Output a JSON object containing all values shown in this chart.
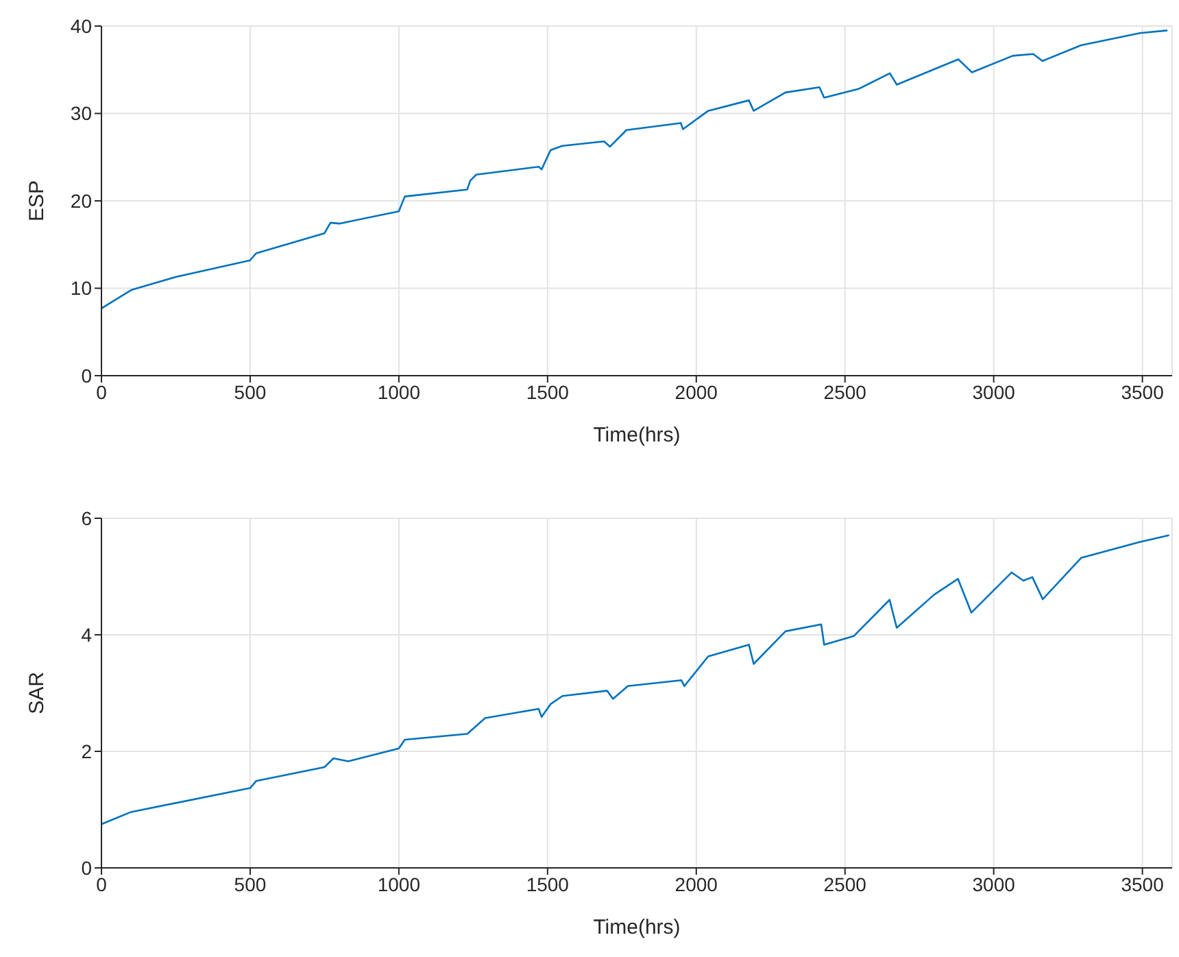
{
  "chart_data": [
    {
      "type": "line",
      "xlabel": "Time(hrs)",
      "ylabel": "ESP",
      "color": "#0072bd",
      "grid": true,
      "xlim": [
        0,
        3600
      ],
      "xticks": [
        0,
        500,
        1000,
        1500,
        2000,
        2500,
        3000,
        3500
      ],
      "ylim": [
        0,
        40
      ],
      "yticks": [
        0,
        10,
        20,
        30,
        40
      ],
      "x": [
        0,
        100,
        250,
        500,
        520,
        750,
        770,
        800,
        1000,
        1020,
        1230,
        1240,
        1260,
        1470,
        1480,
        1510,
        1550,
        1690,
        1710,
        1765,
        1948,
        1955,
        2040,
        2177,
        2193,
        2300,
        2414,
        2430,
        2545,
        2651,
        2674,
        2881,
        2927,
        3064,
        3133,
        3164,
        3294,
        3492,
        3584
      ],
      "values": [
        7.7,
        9.8,
        11.3,
        13.2,
        14,
        16.3,
        17.5,
        17.4,
        18.8,
        20.5,
        21.3,
        22.3,
        23,
        23.9,
        23.6,
        25.8,
        26.3,
        26.8,
        26.2,
        28.1,
        28.9,
        28.2,
        30.3,
        31.5,
        30.3,
        32.4,
        33,
        31.8,
        32.8,
        34.6,
        33.3,
        36.2,
        34.7,
        36.6,
        36.8,
        36,
        37.8,
        39.2,
        39.5
      ]
    },
    {
      "type": "line",
      "xlabel": "Time(hrs)",
      "ylabel": "SAR",
      "color": "#0072bd",
      "grid": true,
      "xlim": [
        0,
        3600
      ],
      "xticks": [
        0,
        500,
        1000,
        1500,
        2000,
        2500,
        3000,
        3500
      ],
      "ylim": [
        0,
        6
      ],
      "yticks": [
        0,
        2,
        4,
        6
      ],
      "x": [
        0,
        100,
        500,
        520,
        750,
        780,
        830,
        1000,
        1020,
        1230,
        1290,
        1470,
        1480,
        1510,
        1550,
        1700,
        1720,
        1770,
        1950,
        1960,
        2040,
        2177,
        2193,
        2300,
        2420,
        2430,
        2530,
        2650,
        2674,
        2800,
        2880,
        2925,
        3060,
        3100,
        3130,
        3165,
        3294,
        3490,
        3590
      ],
      "values": [
        0.75,
        0.96,
        1.37,
        1.49,
        1.73,
        1.88,
        1.83,
        2.05,
        2.2,
        2.3,
        2.57,
        2.73,
        2.59,
        2.81,
        2.95,
        3.04,
        2.9,
        3.12,
        3.22,
        3.12,
        3.63,
        3.83,
        3.5,
        4.06,
        4.18,
        3.83,
        3.98,
        4.6,
        4.12,
        4.69,
        4.96,
        4.38,
        5.07,
        4.93,
        4.99,
        4.61,
        5.32,
        5.59,
        5.71
      ]
    }
  ]
}
